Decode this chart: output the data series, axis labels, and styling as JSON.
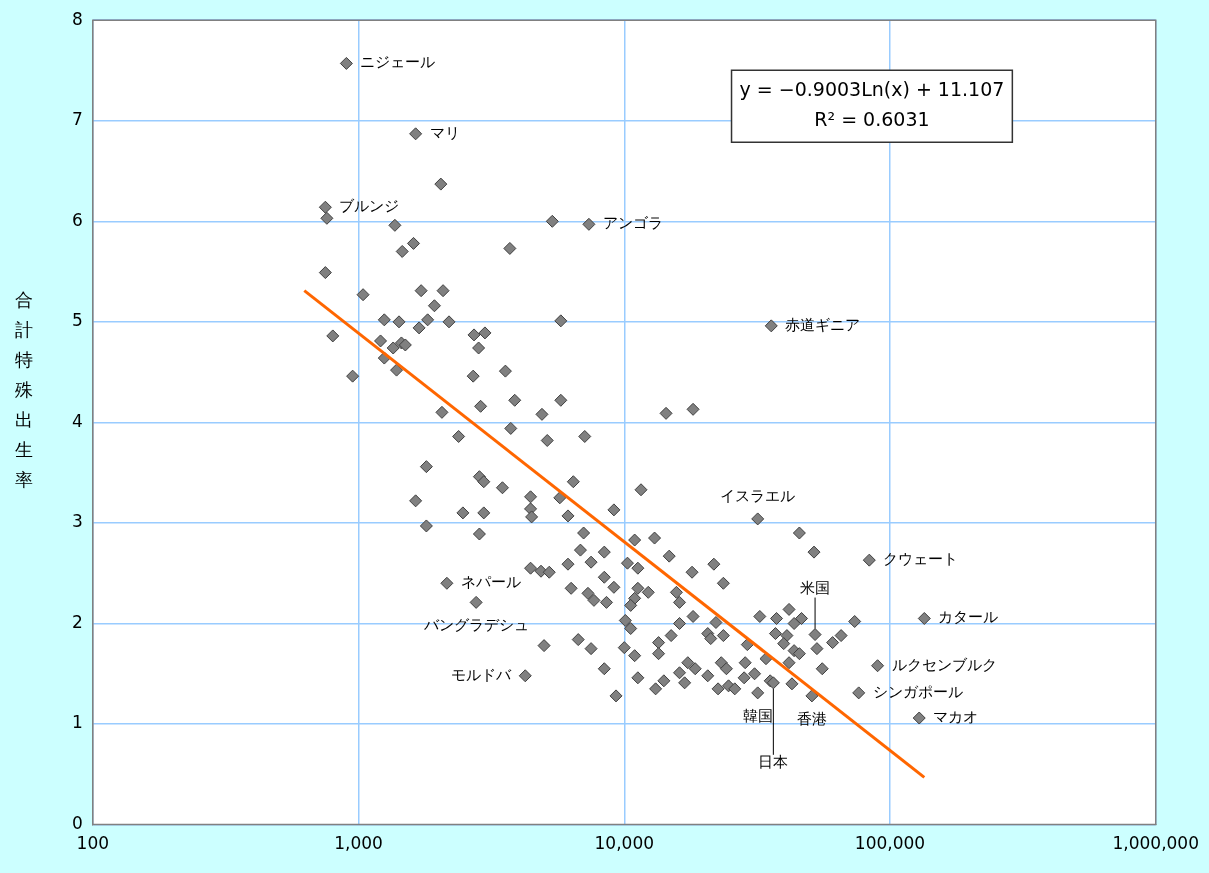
{
  "chart_data": {
    "type": "scatter",
    "ylabel": "合計特殊出生率",
    "log": "x",
    "grid": true,
    "legend": false,
    "xlim": [
      100,
      1000000
    ],
    "xticks": [
      100,
      {
        "value": 1000,
        "label": "1,000"
      },
      {
        "value": 10000,
        "label": "10,000"
      },
      {
        "value": 100000,
        "label": "100,000"
      },
      {
        "value": 1000000,
        "label": "1,000,000"
      }
    ],
    "ylim": [
      0,
      8
    ],
    "yticks": [
      0,
      1,
      2,
      3,
      4,
      5,
      6,
      7,
      8
    ],
    "series": [
      {
        "marker": "diamond",
        "color": "#808080",
        "x": [
          900,
          1640,
          2040,
          750,
          760,
          1370,
          1610,
          1460,
          3710,
          5360,
          7360,
          750,
          1040,
          1720,
          2080,
          1930,
          800,
          1250,
          1420,
          1690,
          1820,
          2190,
          2720,
          2990,
          5770,
          950,
          1210,
          1350,
          1450,
          1500,
          1250,
          1390,
          2830,
          2700,
          3570,
          2060,
          2880,
          3870,
          4900,
          5770,
          3740,
          2380,
          5130,
          7100,
          1800,
          2850,
          2960,
          3480,
          6430,
          4440,
          5720,
          1640,
          2470,
          2960,
          4440,
          4480,
          6140,
          9140,
          11560,
          1800,
          2850,
          7030,
          6840,
          8410,
          7500,
          6140,
          4440,
          4860,
          5220,
          10940,
          10280,
          11250,
          2150,
          6310,
          8410,
          9140,
          7300,
          7690,
          8570,
          11250,
          10940,
          10570,
          2770,
          10090,
          10570,
          4990,
          6710,
          7500,
          10000,
          10940,
          4240,
          8410,
          11250,
          9310,
          14360,
          18150,
          31780,
          45600,
          51760,
          83560,
          13000,
          14760,
          21730,
          17990,
          23600,
          12310,
          15710,
          16140,
          18150,
          16140,
          22130,
          20610,
          23600,
          32360,
          41690,
          37410,
          46450,
          43560,
          73620,
          134600,
          37060,
          40930,
          52240,
          60810,
          65460,
          53090,
          43560,
          39810,
          13460,
          13460,
          15010,
          21150,
          29040,
          34140,
          41690,
          45600,
          55590,
          89800,
          13120,
          14090,
          16140,
          16870,
          17340,
          18490,
          20610,
          23170,
          24230,
          22540,
          24680,
          26050,
          28250,
          28510,
          30920,
          31780,
          35410,
          36390,
          42760,
          50820,
          76250,
          128800,
          35740
        ],
        "values": [
          7.57,
          6.87,
          6.37,
          6.14,
          6.03,
          5.96,
          5.78,
          5.7,
          5.73,
          6.0,
          5.97,
          5.49,
          5.27,
          5.31,
          5.31,
          5.16,
          4.86,
          5.02,
          5.0,
          4.94,
          5.02,
          5.0,
          4.87,
          4.89,
          5.01,
          4.46,
          4.81,
          4.74,
          4.79,
          4.77,
          4.64,
          4.52,
          4.74,
          4.46,
          4.51,
          4.1,
          4.16,
          4.22,
          4.08,
          4.22,
          3.94,
          3.86,
          3.82,
          3.86,
          3.56,
          3.46,
          3.41,
          3.35,
          3.41,
          3.26,
          3.25,
          3.22,
          3.1,
          3.1,
          3.14,
          3.06,
          3.07,
          3.13,
          3.33,
          2.97,
          2.89,
          2.9,
          2.73,
          2.71,
          2.61,
          2.59,
          2.55,
          2.52,
          2.51,
          2.83,
          2.6,
          2.55,
          2.4,
          2.35,
          2.46,
          2.36,
          2.3,
          2.23,
          2.21,
          2.35,
          2.25,
          2.18,
          2.21,
          2.03,
          1.95,
          1.78,
          1.84,
          1.75,
          1.76,
          1.68,
          1.48,
          1.55,
          1.46,
          1.28,
          4.09,
          4.13,
          3.04,
          2.9,
          2.71,
          2.63,
          2.85,
          2.67,
          2.59,
          2.51,
          2.4,
          2.31,
          2.31,
          2.21,
          2.07,
          2.0,
          2.01,
          1.9,
          1.88,
          2.07,
          2.14,
          2.05,
          2.05,
          2.0,
          2.02,
          2.05,
          1.9,
          1.88,
          1.89,
          1.81,
          1.88,
          1.75,
          1.73,
          1.8,
          1.81,
          1.7,
          1.88,
          1.85,
          1.79,
          1.65,
          1.61,
          1.7,
          1.55,
          1.58,
          1.35,
          1.43,
          1.51,
          1.41,
          1.61,
          1.55,
          1.48,
          1.61,
          1.55,
          1.35,
          1.38,
          1.35,
          1.46,
          1.61,
          1.5,
          1.31,
          1.43,
          1.41,
          1.4,
          1.28,
          1.31,
          1.06,
          4.96
        ]
      },
      {
        "type": "line",
        "color": "#ff6600",
        "x": [
          625,
          134600
        ],
        "values": [
          5.31,
          0.47
        ]
      }
    ],
    "annotations": [
      "y = −0.9003Ln(x) + 11.107",
      "R² = 0.6031",
      {
        "text": "ニジェール",
        "x": 900,
        "y": 7.57
      },
      {
        "text": "マリ",
        "x": 1640,
        "y": 6.87
      },
      {
        "text": "ブルンジ",
        "x": 750,
        "y": 6.14
      },
      {
        "text": "アンゴラ",
        "x": 7360,
        "y": 5.97
      },
      {
        "text": "赤道ギニア",
        "x": 35740,
        "y": 4.96
      },
      {
        "text": "イスラエル",
        "x": 31780,
        "y": 3.04
      },
      {
        "text": "米国",
        "x": 52240,
        "y": 1.89
      },
      {
        "text": "クウェート",
        "x": 83560,
        "y": 2.63
      },
      {
        "text": "カタール",
        "x": 134600,
        "y": 2.05
      },
      {
        "text": "ルクセンブルク",
        "x": 89800,
        "y": 1.58
      },
      {
        "text": "シンガポール",
        "x": 76250,
        "y": 1.31
      },
      {
        "text": "マカオ",
        "x": 128800,
        "y": 1.06
      },
      {
        "text": "ネパール",
        "x": 2150,
        "y": 2.4
      },
      {
        "text": "バングラデシュ",
        "x": 2770,
        "y": 2.21
      },
      {
        "text": "モルドバ",
        "x": 4240,
        "y": 1.48
      },
      {
        "text": "韓国",
        "x": 31780,
        "y": 1.31
      },
      {
        "text": "香港",
        "x": 50820,
        "y": 1.28
      },
      {
        "text": "日本",
        "x": 36390,
        "y": 1.41
      }
    ]
  }
}
